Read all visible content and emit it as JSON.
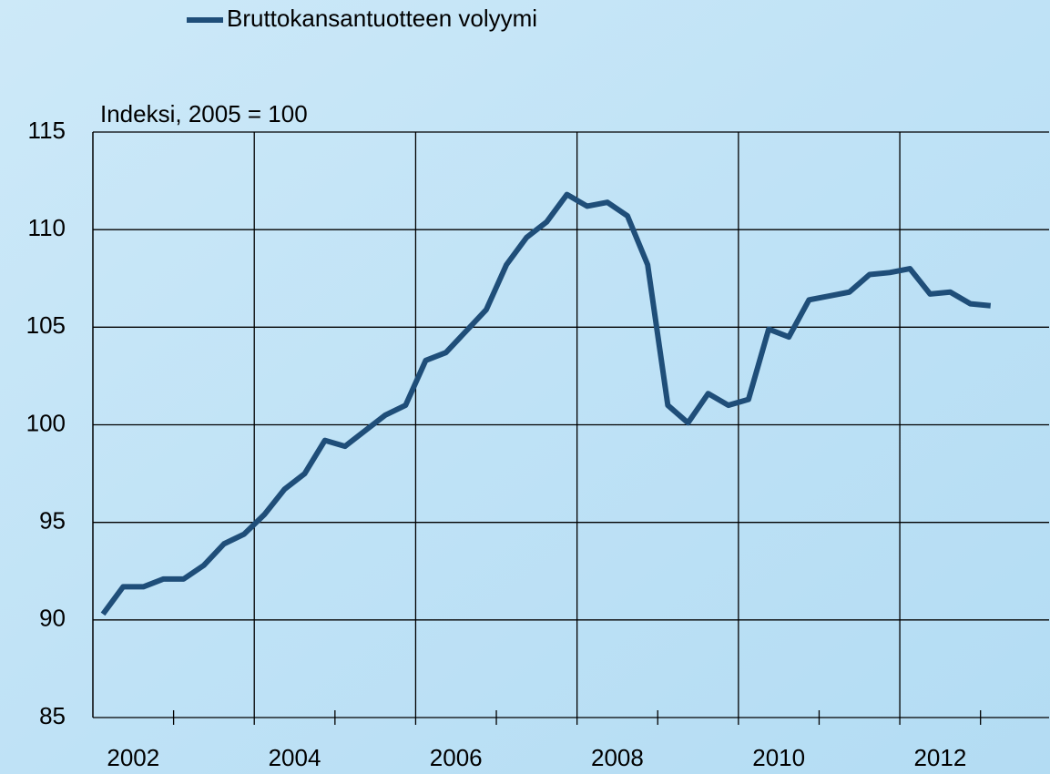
{
  "chart_data": {
    "type": "line",
    "y_axis_label": "Indeksi, 2005 = 100",
    "x": [
      2002.125,
      2002.375,
      2002.625,
      2002.875,
      2003.125,
      2003.375,
      2003.625,
      2003.875,
      2004.125,
      2004.375,
      2004.625,
      2004.875,
      2005.125,
      2005.375,
      2005.625,
      2005.875,
      2006.125,
      2006.375,
      2006.625,
      2006.875,
      2007.125,
      2007.375,
      2007.625,
      2007.875,
      2008.125,
      2008.375,
      2008.625,
      2008.875,
      2009.125,
      2009.375,
      2009.625,
      2009.875,
      2010.125,
      2010.375,
      2010.625,
      2010.875,
      2011.125,
      2011.375,
      2011.625,
      2011.875,
      2012.125,
      2012.375,
      2012.625,
      2012.875,
      2013.125
    ],
    "series": [
      {
        "name": "Bruttokansantuotteen volyymi",
        "color": "#1f4e79",
        "values": [
          90.3,
          91.7,
          91.7,
          92.1,
          92.1,
          92.8,
          93.9,
          94.4,
          95.4,
          96.7,
          97.5,
          99.2,
          98.9,
          99.7,
          100.5,
          101.0,
          103.3,
          103.7,
          104.8,
          105.9,
          108.2,
          109.6,
          110.4,
          111.8,
          111.2,
          111.4,
          110.7,
          108.2,
          101.0,
          100.1,
          101.6,
          101.0,
          101.3,
          104.9,
          104.5,
          106.4,
          106.6,
          106.8,
          107.7,
          107.8,
          108.0,
          106.7,
          106.8,
          106.2,
          106.1
        ]
      }
    ],
    "xlim": [
      2002,
      2013.85
    ],
    "xticks": [
      {
        "value": 2002.5,
        "label": "2002"
      },
      {
        "value": 2004.5,
        "label": "2004"
      },
      {
        "value": 2006.5,
        "label": "2006"
      },
      {
        "value": 2008.5,
        "label": "2008"
      },
      {
        "value": 2010.5,
        "label": "2010"
      },
      {
        "value": 2012.5,
        "label": "2012"
      }
    ],
    "x_grid_lines": [
      2004,
      2006,
      2008,
      2010,
      2012
    ],
    "x_minor_ticks": [
      2003,
      2005,
      2007,
      2009,
      2011,
      2013
    ],
    "ylim": [
      85,
      115
    ],
    "yticks": [
      85,
      90,
      95,
      100,
      105,
      110,
      115
    ],
    "grid": true,
    "legend": "top"
  }
}
